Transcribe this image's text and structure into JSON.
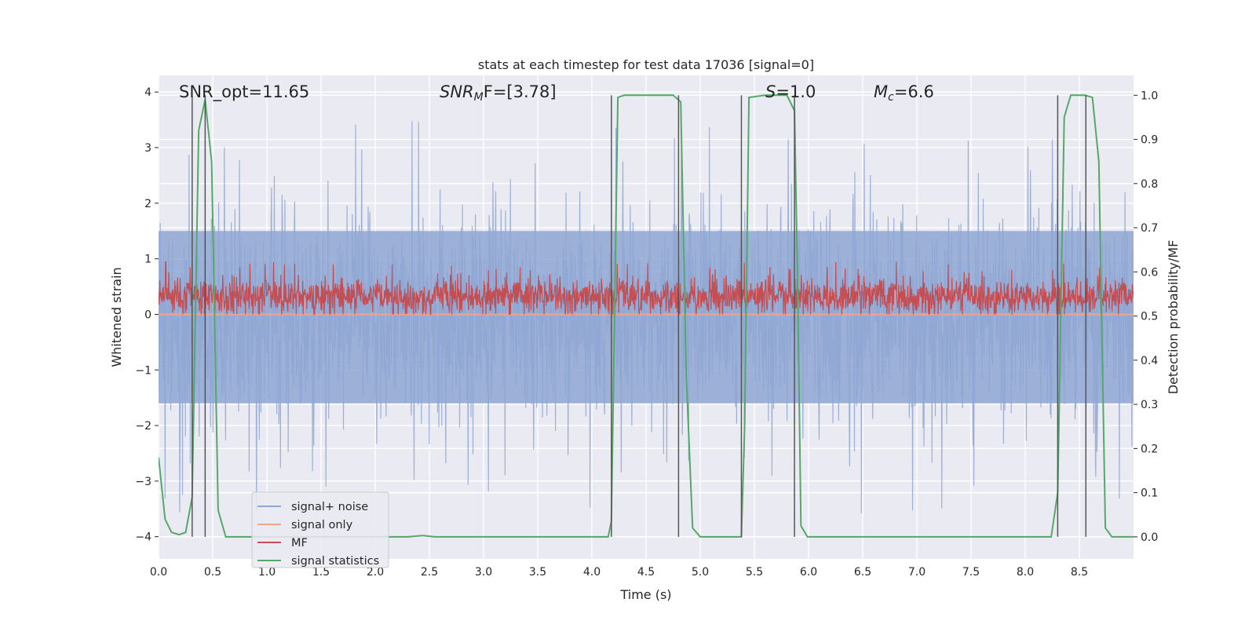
{
  "chart_data": {
    "type": "line",
    "title": "stats at each timestep for test data 17036 [signal=0]",
    "xlabel": "Time (s)",
    "ylabel": "Whitened strain",
    "ylabel_right": "Detection probability/MF",
    "xlim": [
      0.0,
      9.0
    ],
    "ylim": [
      -4.4,
      4.3
    ],
    "ylim_right": [
      -0.05,
      1.045
    ],
    "xticks": [
      0.0,
      0.5,
      1.0,
      1.5,
      2.0,
      2.5,
      3.0,
      3.5,
      4.0,
      4.5,
      5.0,
      5.5,
      6.0,
      6.5,
      7.0,
      7.5,
      8.0,
      8.5
    ],
    "xtick_labels": [
      "0.0",
      "0.5",
      "1.0",
      "1.5",
      "2.0",
      "2.5",
      "3.0",
      "3.5",
      "4.0",
      "4.5",
      "5.0",
      "5.5",
      "6.0",
      "6.5",
      "7.0",
      "7.5",
      "8.0",
      "8.5"
    ],
    "yticks": [
      -4,
      -3,
      -2,
      -1,
      0,
      1,
      2,
      3,
      4
    ],
    "ytick_labels": [
      "−4",
      "−3",
      "−2",
      "−1",
      "0",
      "1",
      "2",
      "3",
      "4"
    ],
    "yticks_right": [
      0.0,
      0.1,
      0.2,
      0.3,
      0.4,
      0.5,
      0.6,
      0.7,
      0.8,
      0.9,
      1.0
    ],
    "ytick_right_labels": [
      "0.0",
      "0.1",
      "0.2",
      "0.3",
      "0.4",
      "0.5",
      "0.6",
      "0.7",
      "0.8",
      "0.9",
      "1.0"
    ],
    "grid": true,
    "annotations": {
      "snr_opt": "SNR_opt=11.65",
      "snr_mf_sym": "SNR",
      "snr_mf_sub": "M",
      "snr_mf_rest": "F=[3.78]",
      "s_sym": "S",
      "s_rest": "=1.0",
      "mc_sym": "M",
      "mc_sub": "c",
      "mc_rest": "=6.6"
    },
    "legend": {
      "location": "lower-left",
      "entries": [
        {
          "label": "signal+ noise",
          "color": "#8fa7d3"
        },
        {
          "label": "signal only",
          "color": "#eea58a"
        },
        {
          "label": "MF",
          "color": "#c44e52"
        },
        {
          "label": "signal statistics",
          "color": "#55a868"
        }
      ]
    },
    "series": [
      {
        "name": "signal+ noise",
        "axis": "left",
        "style": "dense-noise",
        "color": "#8fa7d3",
        "x_range": [
          0.0,
          9.0
        ],
        "amplitude_band": [
          -1.6,
          1.5
        ],
        "peak_max": 3.9,
        "peak_min": -3.7
      },
      {
        "name": "signal only",
        "axis": "left",
        "color": "#eea58a",
        "x": [
          0.0,
          9.0
        ],
        "y": [
          0.0,
          0.0
        ]
      },
      {
        "name": "MF",
        "axis": "left",
        "style": "dense-noise",
        "color": "#c44e52",
        "x_range": [
          0.0,
          9.0
        ],
        "amplitude_band": [
          0.05,
          0.6
        ],
        "peak_max": 0.98,
        "peak_min": 0.0
      },
      {
        "name": "signal statistics",
        "axis": "right",
        "color": "#55a868",
        "x": [
          0.0,
          0.06,
          0.12,
          0.19,
          0.25,
          0.31,
          0.37,
          0.43,
          0.49,
          0.55,
          0.62,
          0.7,
          1.0,
          2.0,
          2.3,
          2.44,
          2.55,
          3.0,
          3.5,
          4.0,
          4.15,
          4.18,
          4.24,
          4.3,
          4.5,
          4.75,
          4.82,
          4.87,
          4.93,
          5.0,
          5.2,
          5.38,
          5.41,
          5.45,
          5.6,
          5.8,
          5.87,
          5.9,
          5.93,
          5.99,
          6.5,
          7.0,
          7.5,
          8.0,
          8.24,
          8.3,
          8.36,
          8.42,
          8.55,
          8.62,
          8.68,
          8.74,
          8.8,
          9.0
        ],
        "y": [
          0.18,
          0.04,
          0.01,
          0.005,
          0.01,
          0.09,
          0.92,
          0.99,
          0.85,
          0.06,
          0.0,
          0.0,
          0.0,
          0.0,
          0.0,
          0.003,
          0.0,
          0.0,
          0.0,
          0.0,
          0.0,
          0.035,
          0.995,
          1.0,
          1.0,
          1.0,
          0.985,
          0.37,
          0.02,
          0.0,
          0.0,
          0.0,
          0.25,
          0.995,
          1.0,
          1.0,
          0.965,
          0.56,
          0.025,
          0.0,
          0.0,
          0.0,
          0.0,
          0.0,
          0.0,
          0.1,
          0.95,
          1.0,
          1.0,
          0.995,
          0.85,
          0.02,
          0.0,
          0.0
        ]
      }
    ],
    "vertical_markers": [
      0.31,
      0.43,
      4.18,
      4.8,
      5.38,
      5.87,
      8.3,
      8.56
    ]
  }
}
